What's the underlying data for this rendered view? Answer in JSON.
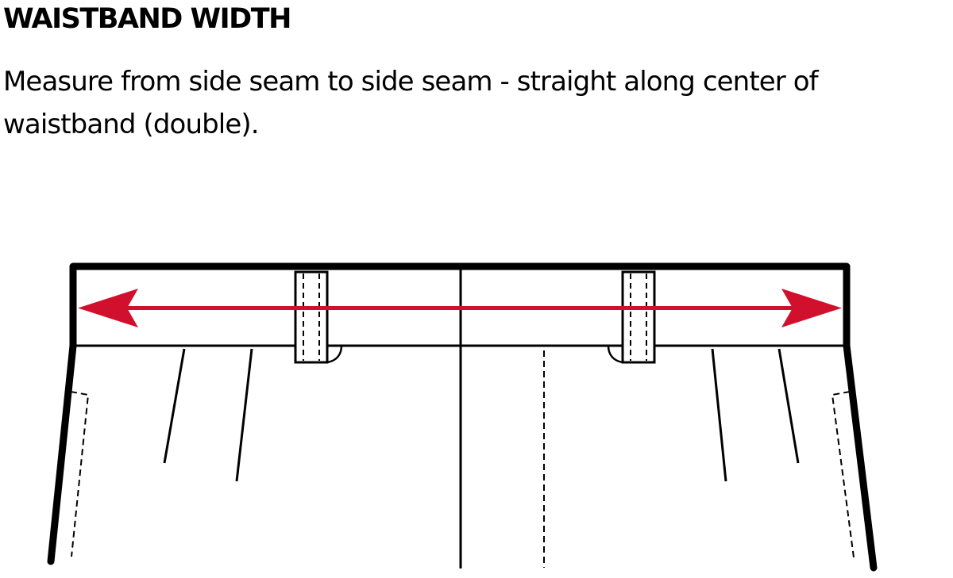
{
  "heading": "WAISTBAND WIDTH",
  "description": "Measure from side seam to side seam - straight along center of waistband (double).",
  "colors": {
    "arrow": "#D0102C",
    "line": "#000000",
    "background": "#FFFFFF"
  }
}
